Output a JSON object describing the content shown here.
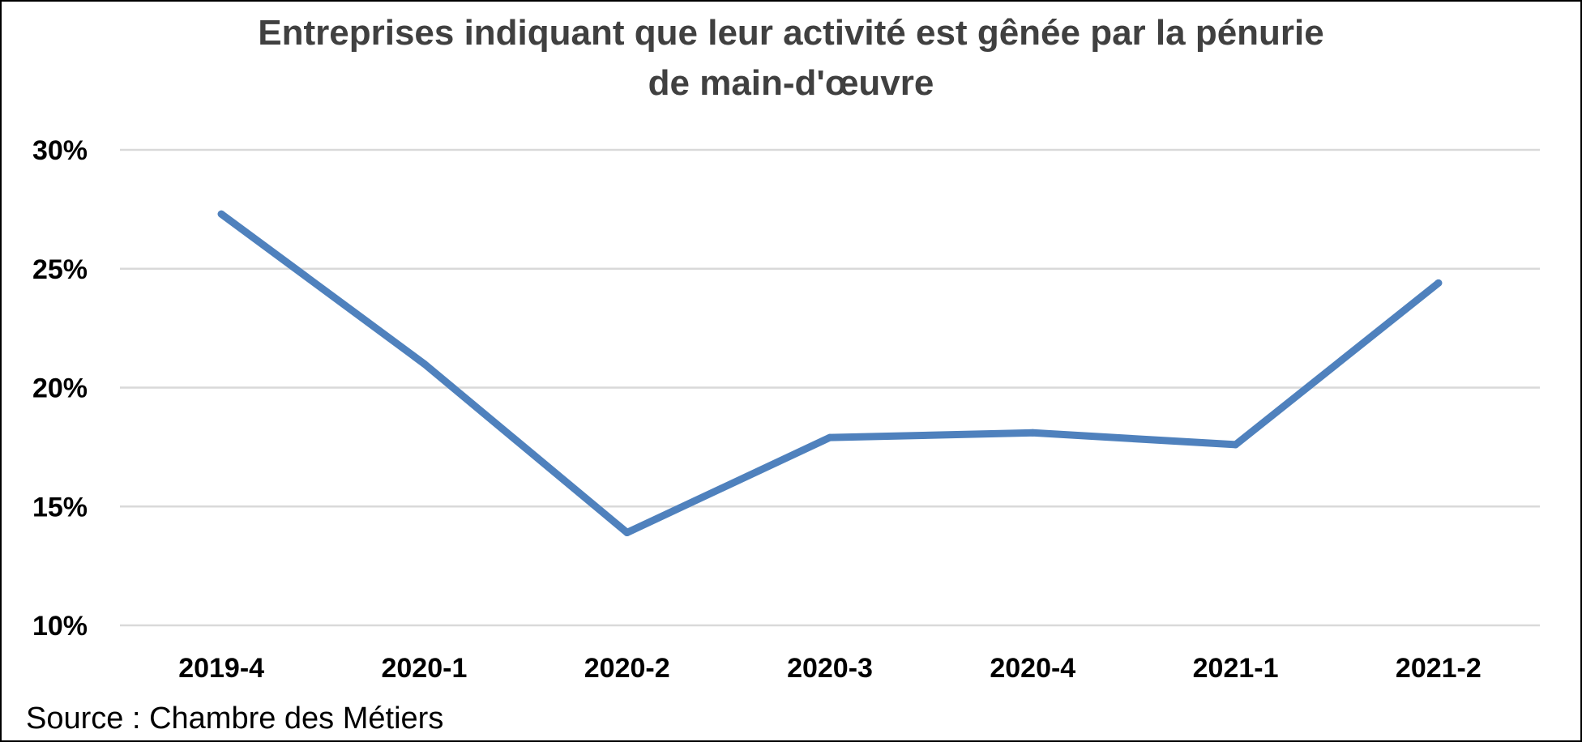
{
  "chart_data": {
    "type": "line",
    "title_lines": [
      "Entreprises indiquant que leur activité est gênée par la pénurie",
      "de main-d'œuvre"
    ],
    "categories": [
      "2019-4",
      "2020-1",
      "2020-2",
      "2020-3",
      "2020-4",
      "2021-1",
      "2021-2"
    ],
    "series": [
      {
        "values": [
          27.3,
          21.0,
          13.9,
          17.9,
          18.1,
          17.6,
          24.4
        ],
        "color": "#4F81BD"
      }
    ],
    "ylim": [
      10,
      30
    ],
    "yticks": [
      10,
      15,
      20,
      25,
      30
    ],
    "ytick_labels": [
      "10%",
      "15%",
      "20%",
      "25%",
      "30%"
    ],
    "xlabel": "",
    "ylabel": "",
    "grid": true,
    "legend": "none",
    "gridline_color": "#D9D9D9"
  },
  "source": "Source : Chambre des Métiers"
}
